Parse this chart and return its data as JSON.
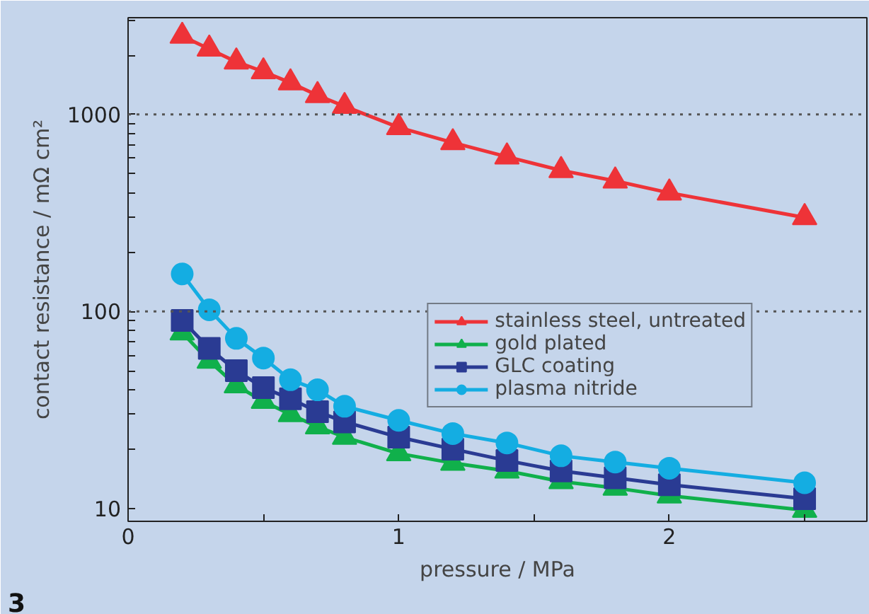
{
  "chart_data": {
    "type": "line",
    "xlabel": "pressure / MPa",
    "ylabel": "contact resistance / mΩ cm²",
    "x": [
      0.2,
      0.3,
      0.4,
      0.5,
      0.6,
      0.7,
      0.8,
      1.0,
      1.2,
      1.4,
      1.6,
      1.8,
      2.0,
      2.5
    ],
    "series": [
      {
        "name": "stainless steel, untreated",
        "color": "#ee3338",
        "marker": "triangle",
        "values": [
          2500,
          2150,
          1850,
          1650,
          1450,
          1250,
          1100,
          860,
          720,
          610,
          520,
          460,
          400,
          300
        ]
      },
      {
        "name": "gold plated",
        "color": "#10b04b",
        "marker": "triangle",
        "values": [
          78,
          56,
          42,
          35,
          30,
          26,
          23,
          19,
          17,
          15.5,
          13.7,
          12.7,
          11.6,
          9.8
        ]
      },
      {
        "name": "GLC coating",
        "color": "#2a3b93",
        "marker": "square",
        "values": [
          90,
          65,
          50,
          41,
          36,
          31,
          27.5,
          23,
          20,
          17.5,
          15.5,
          14.3,
          13.2,
          11.2
        ]
      },
      {
        "name": "plasma nitride",
        "color": "#14ade2",
        "marker": "circle",
        "values": [
          155,
          102,
          73,
          58,
          45,
          40,
          33,
          28,
          24,
          21.5,
          18.5,
          17.2,
          16,
          13.5
        ]
      }
    ],
    "log": "y",
    "xlim": [
      0,
      2.73
    ],
    "ylim": [
      8.6,
      3100
    ],
    "xticks": [
      0,
      {
        "value": 0.5,
        "label": null
      },
      1,
      {
        "value": 1.5,
        "label": null
      },
      2,
      {
        "value": 2.5,
        "label": null
      }
    ],
    "yticks": [
      10,
      {
        "value": 20,
        "label": null
      },
      {
        "value": 30,
        "label": null
      },
      {
        "value": 40,
        "label": null
      },
      {
        "value": 50,
        "label": null
      },
      {
        "value": 60,
        "label": null
      },
      {
        "value": 70,
        "label": null
      },
      {
        "value": 80,
        "label": null
      },
      {
        "value": 90,
        "label": null
      },
      100,
      {
        "value": 200,
        "label": null
      },
      {
        "value": 300,
        "label": null
      },
      {
        "value": 400,
        "label": null
      },
      {
        "value": 500,
        "label": null
      },
      {
        "value": 600,
        "label": null
      },
      {
        "value": 700,
        "label": null
      },
      {
        "value": 800,
        "label": null
      },
      {
        "value": 900,
        "label": null
      },
      1000,
      {
        "value": 2000,
        "label": null
      },
      {
        "value": 3000,
        "label": null
      }
    ],
    "ref_lines": [
      {
        "axis": "y",
        "value": 100,
        "line_style": "dotted",
        "color": "#555555"
      },
      {
        "axis": "y",
        "value": 1000,
        "line_style": "dotted",
        "color": "#555555"
      }
    ],
    "grid": false,
    "legend": "right",
    "line_style": "solid",
    "annotations": [
      "3"
    ]
  }
}
